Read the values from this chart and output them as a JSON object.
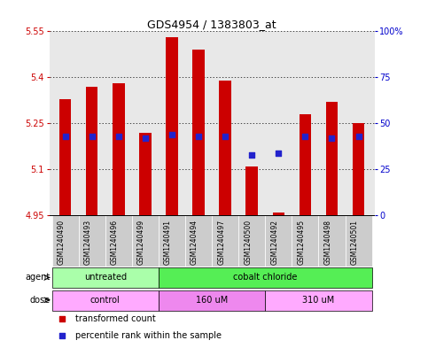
{
  "title": "GDS4954 / 1383803_at",
  "samples": [
    "GSM1240490",
    "GSM1240493",
    "GSM1240496",
    "GSM1240499",
    "GSM1240491",
    "GSM1240494",
    "GSM1240497",
    "GSM1240500",
    "GSM1240492",
    "GSM1240495",
    "GSM1240498",
    "GSM1240501"
  ],
  "bar_bottom": 4.95,
  "bar_top": [
    5.33,
    5.37,
    5.38,
    5.22,
    5.53,
    5.49,
    5.39,
    5.11,
    4.96,
    5.28,
    5.32,
    5.25
  ],
  "blue_dot_percentile": [
    43,
    43,
    43,
    42,
    44,
    43,
    43,
    33,
    34,
    43,
    42,
    43
  ],
  "ylim_left": [
    4.95,
    5.55
  ],
  "ylim_right": [
    0,
    100
  ],
  "yticks_left": [
    4.95,
    5.1,
    5.25,
    5.4,
    5.55
  ],
  "yticks_right": [
    0,
    25,
    50,
    75,
    100
  ],
  "ytick_labels_left": [
    "4.95",
    "5.1",
    "5.25",
    "5.4",
    "5.55"
  ],
  "ytick_labels_right": [
    "0",
    "25",
    "50",
    "75",
    "100%"
  ],
  "bar_color": "#cc0000",
  "dot_color": "#2222cc",
  "grid_color": "#000000",
  "bg_color": "#ffffff",
  "plot_bg": "#e8e8e8",
  "sample_bg": "#cccccc",
  "agent_groups": [
    {
      "label": "untreated",
      "start": 0,
      "end": 4,
      "color": "#aaffaa"
    },
    {
      "label": "cobalt chloride",
      "start": 4,
      "end": 12,
      "color": "#55ee55"
    }
  ],
  "dose_groups": [
    {
      "label": "control",
      "start": 0,
      "end": 4,
      "color": "#ffaaff"
    },
    {
      "label": "160 uM",
      "start": 4,
      "end": 8,
      "color": "#ee88ee"
    },
    {
      "label": "310 uM",
      "start": 8,
      "end": 12,
      "color": "#ffaaff"
    }
  ],
  "legend_items": [
    "transformed count",
    "percentile rank within the sample"
  ],
  "left_label_color": "#cc0000",
  "right_label_color": "#0000cc",
  "title_fontsize": 9
}
